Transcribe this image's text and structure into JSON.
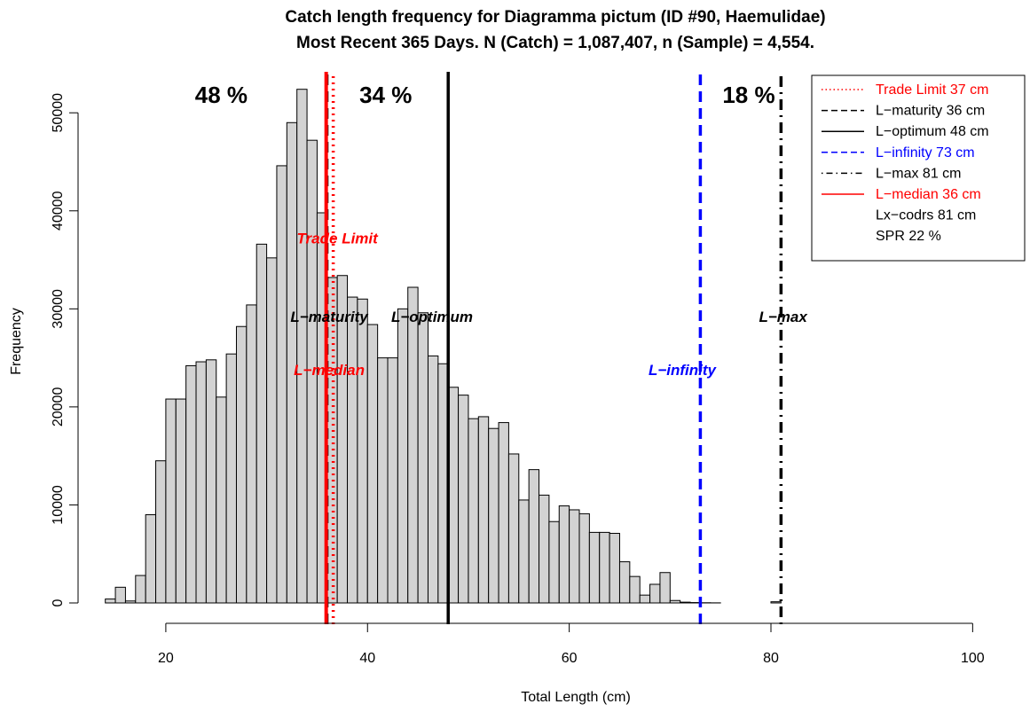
{
  "chart_data": {
    "type": "bar",
    "title": "Catch length frequency for Diagramma pictum (ID #90, Haemulidae)",
    "subtitle": "Most Recent 365 Days. N (Catch) = 1,087,407, n (Sample) = 4,554.",
    "xlabel": "Total Length (cm)",
    "ylabel": "Frequency",
    "xlim": [
      11.3,
      101.2
    ],
    "ylim": [
      0,
      54000
    ],
    "x_ticks": [
      20,
      40,
      60,
      80,
      100
    ],
    "y_ticks": [
      0,
      10000,
      20000,
      30000,
      40000,
      50000
    ],
    "bin_width": 1,
    "bin_start": 14,
    "values": [
      400,
      1600,
      200,
      2800,
      9000,
      14500,
      20800,
      20800,
      24200,
      24600,
      24800,
      21000,
      25400,
      28200,
      30400,
      36600,
      35200,
      44600,
      49000,
      52400,
      47200,
      39800,
      33200,
      33400,
      31200,
      31000,
      28400,
      25000,
      25000,
      30000,
      32200,
      29600,
      25200,
      24400,
      22000,
      21200,
      18800,
      19000,
      17800,
      18400,
      15200,
      10500,
      13600,
      11000,
      8300,
      9900,
      9500,
      9100,
      7200,
      7200,
      7100,
      4200,
      2700,
      800,
      1900,
      3100,
      250,
      80,
      40,
      20,
      10,
      0,
      0,
      0,
      0,
      0,
      120,
      0,
      0,
      0,
      0,
      0,
      0,
      0,
      0
    ],
    "grid": false,
    "legend_position": "top-right",
    "percent_labels": [
      {
        "text": "48 %",
        "x": 25.5
      },
      {
        "text": "34 %",
        "x": 41.8
      },
      {
        "text": "18 %",
        "x": 77.8
      }
    ],
    "reference_lines": [
      {
        "key": "trade_limit",
        "x": 36.6,
        "color": "#ff0000",
        "style": "dotted",
        "width": 3.5,
        "label": "Trade Limit",
        "label_x": 37,
        "label_y": 37200
      },
      {
        "key": "l_maturity",
        "x": 36.0,
        "color": "#000000",
        "style": "dashed",
        "width": 3,
        "label": "L−maturity",
        "label_x": 36.2,
        "label_y": 29200
      },
      {
        "key": "l_optimum",
        "x": 48.0,
        "color": "#000000",
        "style": "solid",
        "width": 3.5,
        "label": "L−optimum",
        "label_x": 46.4,
        "label_y": 29200
      },
      {
        "key": "l_infinity",
        "x": 73.0,
        "color": "#0000ff",
        "style": "dashed",
        "width": 3.5,
        "label": "L−infinity",
        "label_x": 71.2,
        "label_y": 23800
      },
      {
        "key": "l_max",
        "x": 81.0,
        "color": "#000000",
        "style": "dotdash",
        "width": 3.5,
        "label": "L−max",
        "label_x": 81.2,
        "label_y": 29200
      },
      {
        "key": "l_median",
        "x": 35.9,
        "color": "#ff0000",
        "style": "solid",
        "width": 4,
        "label": "L−median",
        "label_x": 36.2,
        "label_y": 23800
      }
    ]
  },
  "legend": {
    "entries": [
      {
        "key": "trade_limit",
        "text": "Trade Limit 37 cm",
        "color": "#ff0000",
        "line_style": "dotted"
      },
      {
        "key": "l_maturity",
        "text": "L−maturity 36 cm",
        "color": "#000000",
        "line_style": "dashed"
      },
      {
        "key": "l_optimum",
        "text": "L−optimum 48 cm",
        "color": "#000000",
        "line_style": "solid"
      },
      {
        "key": "l_infinity",
        "text": "L−infinity 73 cm",
        "color": "#0000ff",
        "line_style": "dashed"
      },
      {
        "key": "l_max",
        "text": "L−max 81 cm",
        "color": "#000000",
        "line_style": "dotdash"
      },
      {
        "key": "l_median",
        "text": "L−median 36 cm",
        "color": "#ff0000",
        "line_style": "solid"
      },
      {
        "key": "lx_codrs",
        "text": "Lx−codrs 81 cm",
        "color": "#000000",
        "line_style": "none"
      },
      {
        "key": "spr",
        "text": "SPR 22 %",
        "color": "#000000",
        "line_style": "none"
      }
    ]
  }
}
